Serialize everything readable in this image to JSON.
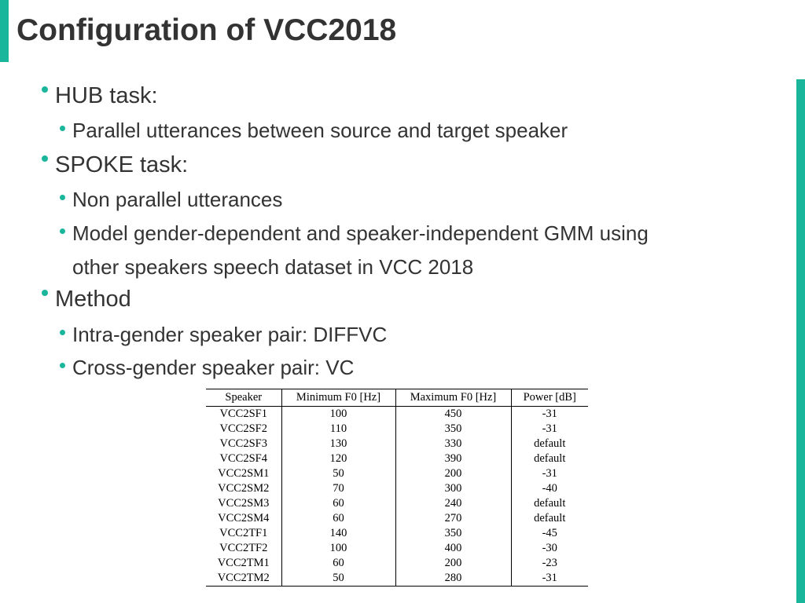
{
  "slide": {
    "title": "Configuration of VCC2018",
    "bullets": {
      "hub": "HUB task:",
      "hub_sub1": "Parallel utterances between source and target speaker",
      "spoke": "SPOKE task:",
      "spoke_sub1": "Non parallel utterances",
      "spoke_sub2_line1": "Model gender-dependent and speaker-independent GMM using",
      "spoke_sub2_line2": "other speakers speech dataset in VCC 2018",
      "method": "Method",
      "method_sub1": "Intra-gender speaker pair: DIFFVC",
      "method_sub2": "Cross-gender speaker pair: VC"
    }
  },
  "table": {
    "headers": [
      "Speaker",
      "Minimum F0 [Hz]",
      "Maximum F0 [Hz]",
      "Power [dB]"
    ],
    "rows": [
      [
        "VCC2SF1",
        "100",
        "450",
        "-31"
      ],
      [
        "VCC2SF2",
        "110",
        "350",
        "-31"
      ],
      [
        "VCC2SF3",
        "130",
        "330",
        "default"
      ],
      [
        "VCC2SF4",
        "120",
        "390",
        "default"
      ],
      [
        "VCC2SM1",
        "50",
        "200",
        "-31"
      ],
      [
        "VCC2SM2",
        "70",
        "300",
        "-40"
      ],
      [
        "VCC2SM3",
        "60",
        "240",
        "default"
      ],
      [
        "VCC2SM4",
        "60",
        "270",
        "default"
      ],
      [
        "VCC2TF1",
        "140",
        "350",
        "-45"
      ],
      [
        "VCC2TF2",
        "100",
        "400",
        "-30"
      ],
      [
        "VCC2TM1",
        "60",
        "200",
        "-23"
      ],
      [
        "VCC2TM2",
        "50",
        "280",
        "-31"
      ]
    ]
  },
  "colors": {
    "accent": "#1ab69c",
    "text": "#333333"
  }
}
